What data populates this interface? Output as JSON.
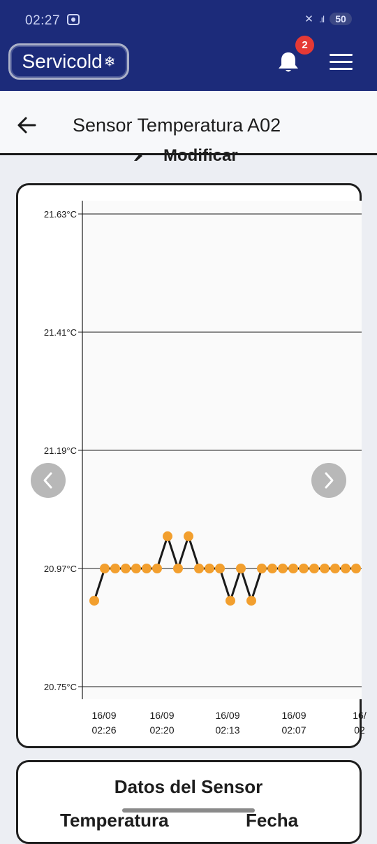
{
  "status_bar": {
    "time": "02:27",
    "battery": "50"
  },
  "header": {
    "logo_text": "Servicold",
    "notification_count": "2"
  },
  "page": {
    "title": "Sensor Temperatura A02",
    "modify_label": "Modificar"
  },
  "chart_data": {
    "type": "line",
    "title": "",
    "xlabel": "",
    "ylabel": "",
    "y_tick_labels": [
      "21.63°C",
      "21.41°C",
      "21.19°C",
      "20.97°C",
      "20.75°C"
    ],
    "y_ticks": [
      21.63,
      21.41,
      21.19,
      20.97,
      20.75
    ],
    "ylim": [
      20.75,
      21.63
    ],
    "x_tick_labels": [
      {
        "date": "16/09",
        "time": "02:26"
      },
      {
        "date": "16/09",
        "time": "02:20"
      },
      {
        "date": "16/09",
        "time": "02:13"
      },
      {
        "date": "16/09",
        "time": "02:07"
      },
      {
        "date": "16/",
        "time": "02"
      }
    ],
    "series": [
      {
        "color": "#f29f2e",
        "line_color": "#1a1a1a",
        "values": [
          20.91,
          20.97,
          20.97,
          20.97,
          20.97,
          20.97,
          20.97,
          21.03,
          20.97,
          21.03,
          20.97,
          20.97,
          20.97,
          20.91,
          20.97,
          20.91,
          20.97,
          20.97,
          20.97,
          20.97,
          20.97,
          20.97,
          20.97,
          20.97,
          20.97,
          20.97
        ]
      }
    ],
    "grid": true
  },
  "sensor_data": {
    "title": "Datos del Sensor",
    "col_left": "Temperatura",
    "col_right": "Fecha"
  }
}
